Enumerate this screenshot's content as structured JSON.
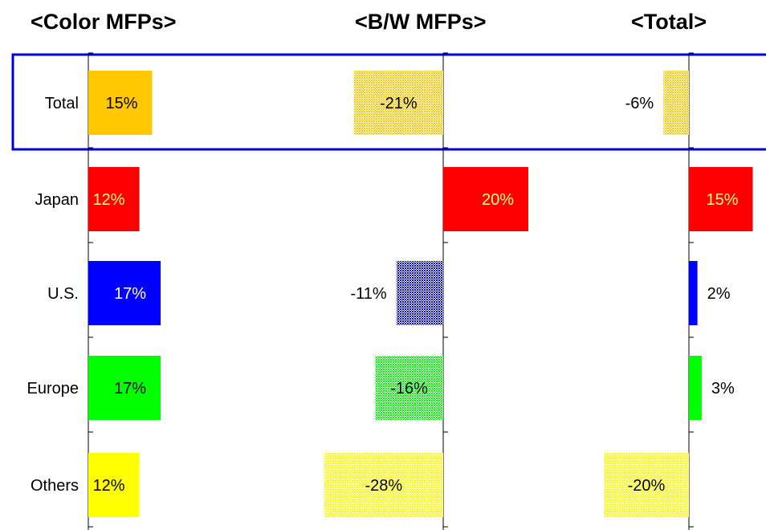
{
  "chart_data": {
    "type": "bar",
    "orientation": "horizontal",
    "categories": [
      "Total",
      "Japan",
      "U.S.",
      "Europe",
      "Others"
    ],
    "panels": [
      {
        "title": "<Color MFPs>",
        "values": [
          15,
          12,
          17,
          17,
          12
        ],
        "labels": [
          "15%",
          "12%",
          "17%",
          "17%",
          "12%"
        ]
      },
      {
        "title": "<B/W MFPs>",
        "values": [
          -21,
          20,
          -11,
          -16,
          -28
        ],
        "labels": [
          "-21%",
          "20%",
          "-11%",
          "-16%",
          "-28%"
        ]
      },
      {
        "title": "<Total>",
        "values": [
          -6,
          15,
          2,
          3,
          -20
        ],
        "labels": [
          "-6%",
          "15%",
          "2%",
          "3%",
          "-20%"
        ]
      }
    ],
    "category_colors": {
      "Total": "#ffc800",
      "Japan": "#ff0000",
      "U.S.": "#0000ff",
      "Europe": "#00ff00",
      "Others": "#ffff00"
    },
    "negative_bar_style": "hatched",
    "highlight": {
      "category": "Total",
      "color": "#0000dd"
    }
  }
}
